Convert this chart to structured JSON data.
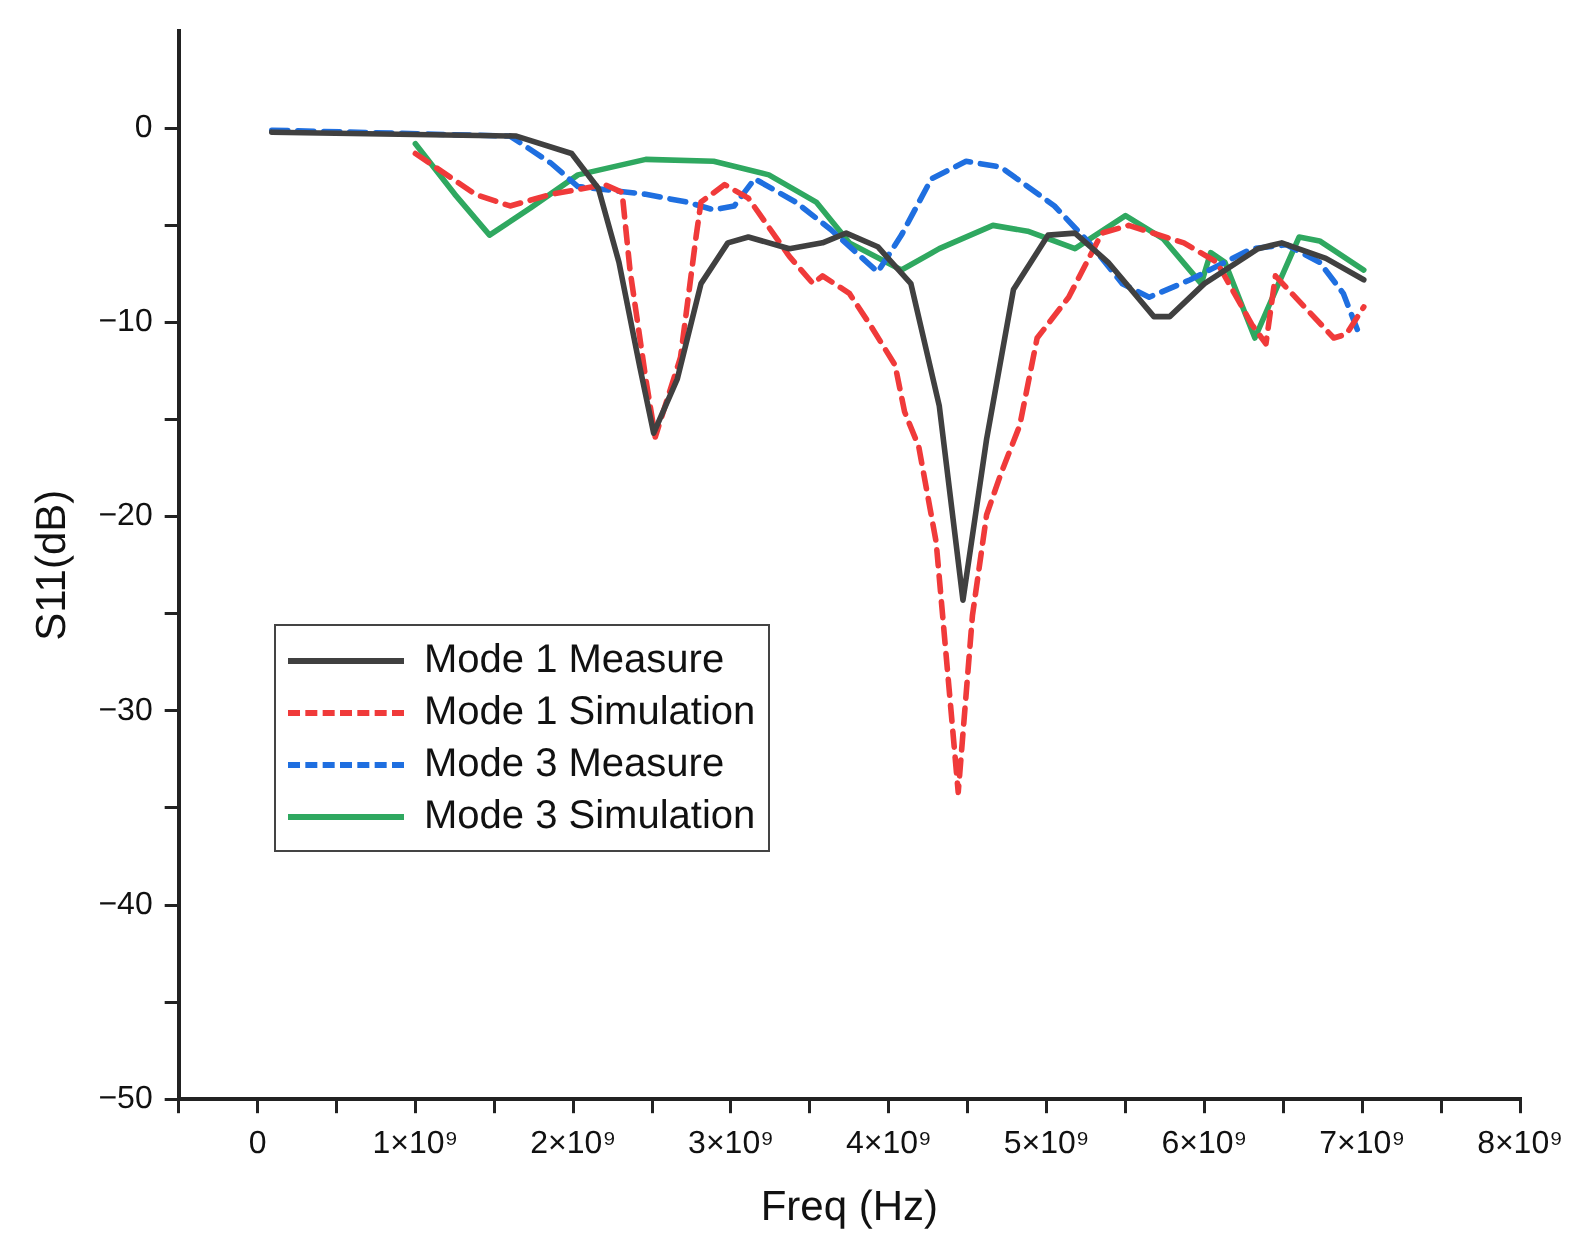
{
  "chart_data": {
    "type": "line",
    "xlabel": "Freq (Hz)",
    "ylabel": "S11(dB)",
    "xlim": [
      -500000000.0,
      8000000000.0
    ],
    "xticks": [
      {
        "value": -500000000.0,
        "label": null
      },
      {
        "value": 0,
        "label": "0"
      },
      {
        "value": 500000000.0,
        "label": null
      },
      {
        "value": 1000000000.0,
        "label": "1×10⁹"
      },
      {
        "value": 1500000000.0,
        "label": null
      },
      {
        "value": 2000000000.0,
        "label": "2×10⁹"
      },
      {
        "value": 2500000000.0,
        "label": null
      },
      {
        "value": 3000000000.0,
        "label": "3×10⁹"
      },
      {
        "value": 3500000000.0,
        "label": null
      },
      {
        "value": 4000000000.0,
        "label": "4×10⁹"
      },
      {
        "value": 4500000000.0,
        "label": null
      },
      {
        "value": 5000000000.0,
        "label": "5×10⁹"
      },
      {
        "value": 5500000000.0,
        "label": null
      },
      {
        "value": 6000000000.0,
        "label": "6×10⁹"
      },
      {
        "value": 6500000000.0,
        "label": null
      },
      {
        "value": 7000000000.0,
        "label": "7×10⁹"
      },
      {
        "value": 7500000000.0,
        "label": null
      },
      {
        "value": 8000000000.0,
        "label": "8×10⁹"
      }
    ],
    "ylim": [
      -50,
      5
    ],
    "yticks": [
      -50,
      {
        "value": -45,
        "label": null
      },
      -40,
      {
        "value": -35,
        "label": null
      },
      -30,
      {
        "value": -25,
        "label": null
      },
      -20,
      {
        "value": -15,
        "label": null
      },
      -10,
      {
        "value": -5,
        "label": null
      },
      0
    ],
    "grid": false,
    "legend": "left",
    "marker": "none",
    "series": [
      {
        "name": "Mode 1 Measure",
        "color": "#404040",
        "line_style": "solid",
        "x": [
          90000000.0,
          1640000000.0,
          1990000000.0,
          2160000000.0,
          2290000000.0,
          2420000000.0,
          2510000000.0,
          2660000000.0,
          2810000000.0,
          2980000000.0,
          3110000000.0,
          3370000000.0,
          3580000000.0,
          3730000000.0,
          3930000000.0,
          4140000000.0,
          4320000000.0,
          4470000000.0,
          4620000000.0,
          4790000000.0,
          5010000000.0,
          5180000000.0,
          5390000000.0,
          5680000000.0,
          5780000000.0,
          6000000000.0,
          6340000000.0,
          6490000000.0,
          6770000000.0,
          7010000000.0
        ],
        "values": [
          -0.2,
          -0.4,
          -1.3,
          -3.1,
          -6.9,
          -12.2,
          -15.7,
          -12.9,
          -8.0,
          -5.9,
          -5.6,
          -6.2,
          -5.9,
          -5.4,
          -6.1,
          -8.0,
          -14.3,
          -24.3,
          -16.0,
          -8.3,
          -5.5,
          -5.4,
          -6.9,
          -9.7,
          -9.7,
          -8.0,
          -6.2,
          -5.9,
          -6.7,
          -7.8
        ]
      },
      {
        "name": "Mode 1 Simulation",
        "color": "#f03a3a",
        "line_style": "dashed",
        "x": [
          1000000000.0,
          1380000000.0,
          1600000000.0,
          1860000000.0,
          2200000000.0,
          2310000000.0,
          2360000000.0,
          2460000000.0,
          2520000000.0,
          2680000000.0,
          2780000000.0,
          2810000000.0,
          2960000000.0,
          3110000000.0,
          3370000000.0,
          3520000000.0,
          3580000000.0,
          3750000000.0,
          3880000000.0,
          4040000000.0,
          4100000000.0,
          4190000000.0,
          4300000000.0,
          4440000000.0,
          4530000000.0,
          4620000000.0,
          4710000000.0,
          4830000000.0,
          4940000000.0,
          5140000000.0,
          5350000000.0,
          5520000000.0,
          5870000000.0,
          6080000000.0,
          6300000000.0,
          6390000000.0,
          6450000000.0,
          6600000000.0,
          6820000000.0,
          6900000000.0,
          7010000000.0
        ],
        "values": [
          -1.3,
          -3.4,
          -4.0,
          -3.4,
          -2.9,
          -3.3,
          -7.3,
          -12.9,
          -15.9,
          -11.8,
          -5.5,
          -3.8,
          -2.9,
          -3.6,
          -6.6,
          -8.0,
          -7.6,
          -8.5,
          -10.1,
          -12.2,
          -14.6,
          -16.4,
          -21.3,
          -34.2,
          -25.1,
          -19.9,
          -17.8,
          -15.3,
          -10.8,
          -8.7,
          -5.4,
          -5.0,
          -5.9,
          -6.9,
          -10.1,
          -11.1,
          -7.6,
          -8.9,
          -10.8,
          -10.6,
          -9.2
        ]
      },
      {
        "name": "Mode 3 Measure",
        "color": "#1f6fe0",
        "line_style": "dashed",
        "x": [
          90000000.0,
          1600000000.0,
          1860000000.0,
          2030000000.0,
          2460000000.0,
          2720000000.0,
          2890000000.0,
          3020000000.0,
          3150000000.0,
          3410000000.0,
          3630000000.0,
          3930000000.0,
          4080000000.0,
          4270000000.0,
          4490000000.0,
          4710000000.0,
          5050000000.0,
          5270000000.0,
          5480000000.0,
          5650000000.0,
          5910000000.0,
          6300000000.0,
          6520000000.0,
          6730000000.0,
          6880000000.0,
          6990000000.0
        ],
        "values": [
          -0.1,
          -0.4,
          -1.8,
          -3.0,
          -3.4,
          -3.8,
          -4.2,
          -4.0,
          -2.6,
          -3.8,
          -5.2,
          -7.4,
          -5.5,
          -2.6,
          -1.7,
          -2.0,
          -4.0,
          -5.9,
          -8.0,
          -8.7,
          -7.8,
          -6.2,
          -6.0,
          -6.9,
          -8.5,
          -10.8
        ]
      },
      {
        "name": "Mode 3 Simulation",
        "color": "#2fa860",
        "line_style": "solid",
        "x": [
          1000000000.0,
          1250000000.0,
          1470000000.0,
          1730000000.0,
          2030000000.0,
          2460000000.0,
          2890000000.0,
          3240000000.0,
          3540000000.0,
          3750000000.0,
          4080000000.0,
          4320000000.0,
          4660000000.0,
          4880000000.0,
          5180000000.0,
          5500000000.0,
          5740000000.0,
          5980000000.0,
          6040000000.0,
          6130000000.0,
          6320000000.0,
          6470000000.0,
          6600000000.0,
          6730000000.0,
          7010000000.0
        ],
        "values": [
          -0.8,
          -3.4,
          -5.5,
          -4.1,
          -2.4,
          -1.6,
          -1.7,
          -2.4,
          -3.8,
          -5.9,
          -7.3,
          -6.2,
          -5.0,
          -5.3,
          -6.2,
          -4.5,
          -5.7,
          -8.0,
          -6.4,
          -6.9,
          -10.8,
          -8.0,
          -5.6,
          -5.8,
          -7.3
        ]
      }
    ]
  }
}
